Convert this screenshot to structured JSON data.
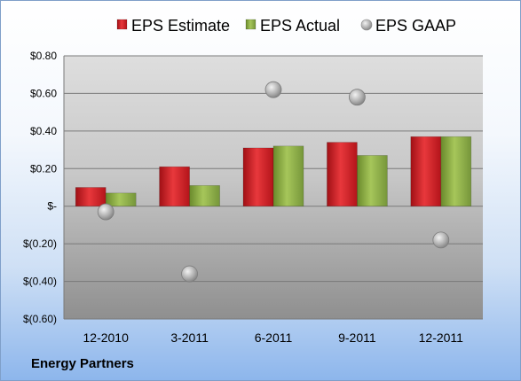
{
  "company": "Energy Partners",
  "chart_data": {
    "type": "bar",
    "title": "",
    "xlabel": "",
    "ylabel": "",
    "categories": [
      "12-2010",
      "3-2011",
      "6-2011",
      "9-2011",
      "12-2011"
    ],
    "series": [
      {
        "name": "EPS Estimate",
        "kind": "bar",
        "color": "#c0181c",
        "values": [
          0.1,
          0.21,
          0.31,
          0.34,
          0.37
        ]
      },
      {
        "name": "EPS Actual",
        "kind": "bar",
        "color": "#86a93e",
        "values": [
          0.07,
          0.11,
          0.32,
          0.27,
          0.37
        ]
      },
      {
        "name": "EPS GAAP",
        "kind": "marker",
        "color": "#a6a6a6",
        "values": [
          -0.03,
          -0.36,
          0.62,
          0.58,
          -0.18
        ]
      }
    ],
    "ylim": [
      -0.6,
      0.8
    ],
    "yticks": [
      0.8,
      0.6,
      0.4,
      0.2,
      0,
      -0.2,
      -0.4,
      -0.6
    ],
    "ytick_labels": [
      "$0.80",
      "$0.60",
      "$0.40",
      "$0.20",
      "$-",
      "$(0.20)",
      "$(0.40)",
      "$(0.60)"
    ],
    "grid": true,
    "legend_position": "top"
  }
}
